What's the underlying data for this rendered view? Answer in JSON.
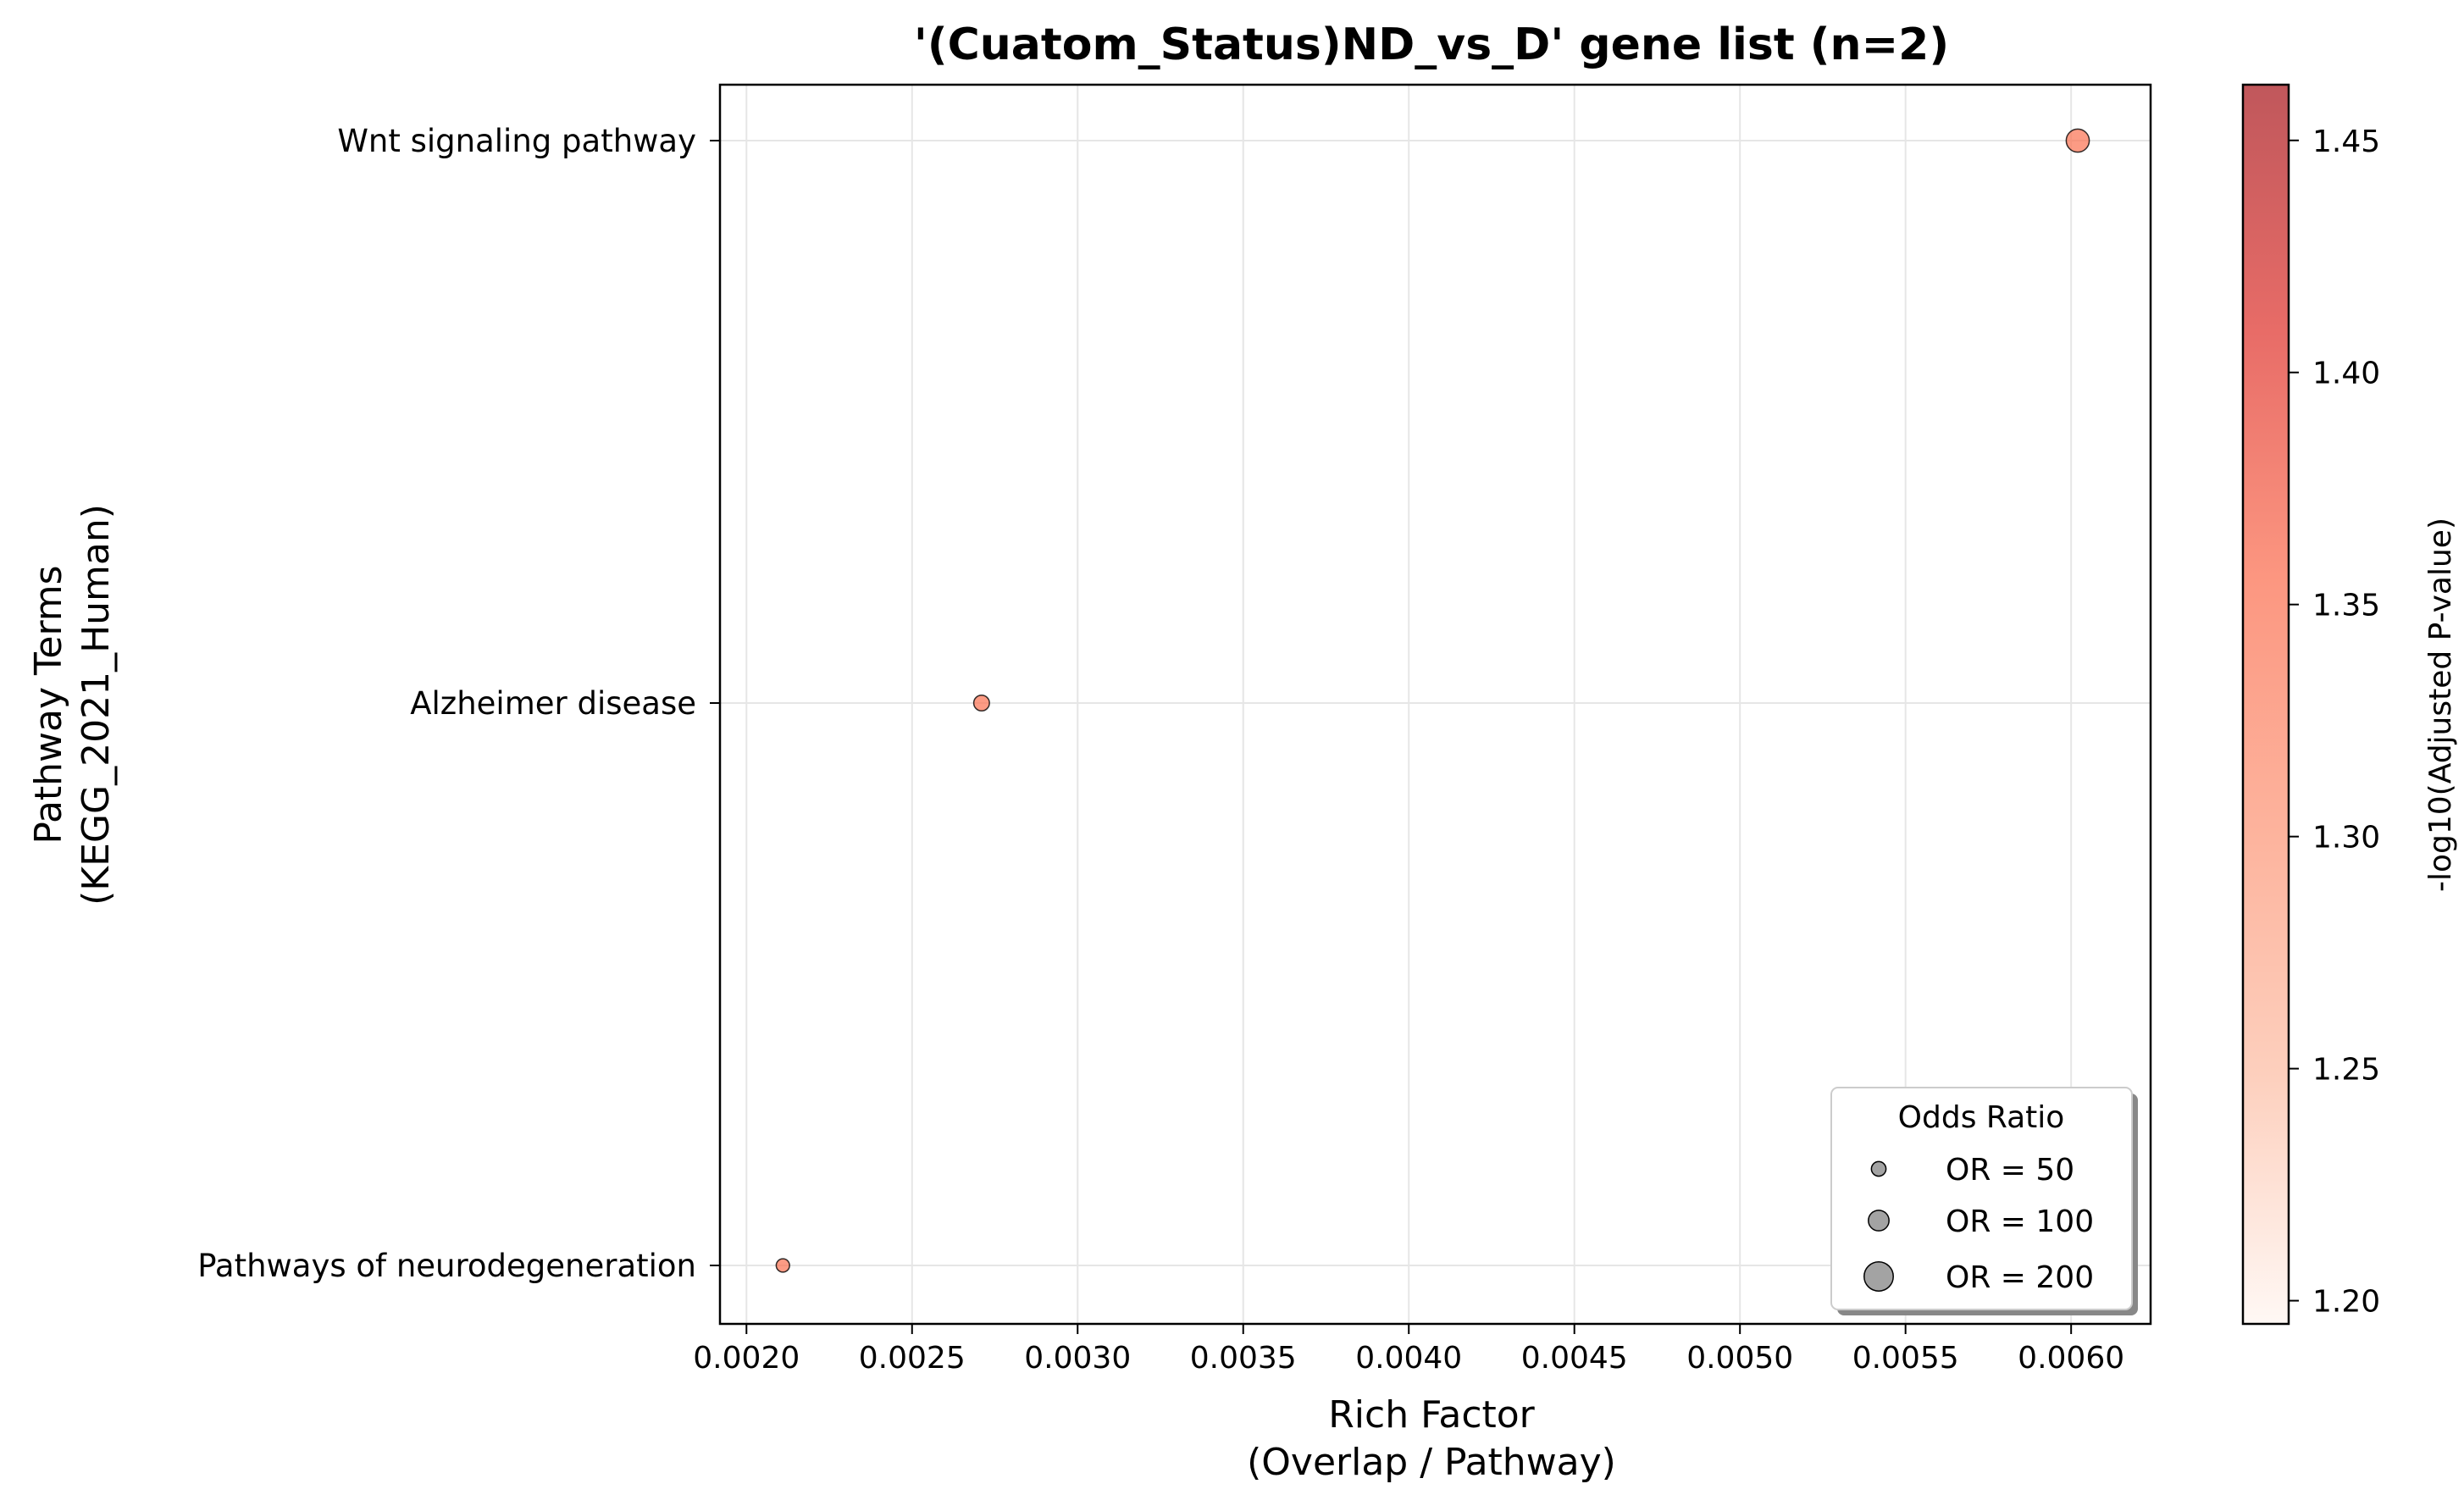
{
  "chart_data": {
    "type": "scatter",
    "title": "'(Cuatom_Status)ND_vs_D' gene list (n=2)",
    "xlabel_line1": "Rich Factor",
    "xlabel_line2": "(Overlap / Pathway)",
    "ylabel_line1": "Pathway Terms",
    "ylabel_line2": "(KEGG_2021_Human)",
    "xlim": [
      0.00192,
      0.00624
    ],
    "xticks": [
      "0.0020",
      "0.0025",
      "0.0030",
      "0.0035",
      "0.0040",
      "0.0045",
      "0.0050",
      "0.0055",
      "0.0060"
    ],
    "xtick_values": [
      0.002,
      0.0025,
      0.003,
      0.0035,
      0.004,
      0.0045,
      0.005,
      0.0055,
      0.006
    ],
    "categories": [
      "Wnt signaling pathway",
      "Alzheimer disease",
      "Pathways of neurodegeneration"
    ],
    "points": [
      {
        "term": "Wnt signaling pathway",
        "x": 0.00602,
        "odds_ratio": 125,
        "neglog10_padj": 1.34
      },
      {
        "term": "Alzheimer disease",
        "x": 0.00271,
        "odds_ratio": 58,
        "neglog10_padj": 1.34
      },
      {
        "term": "Pathways of neurodegeneration",
        "x": 0.00211,
        "odds_ratio": 42,
        "neglog10_padj": 1.34
      }
    ],
    "grid": true,
    "colorbar": {
      "label": "-log10(Adjusted P-value)",
      "range": [
        1.195,
        1.462
      ],
      "ticks": [
        "1.20",
        "1.25",
        "1.30",
        "1.35",
        "1.40",
        "1.45"
      ],
      "tick_values": [
        1.2,
        1.25,
        1.3,
        1.35,
        1.4,
        1.45
      ],
      "colors": [
        "#fff5f0",
        "#fcbba1",
        "#fc9272",
        "#fb6a4a",
        "#de2d26",
        "#a50f15"
      ]
    },
    "legend": {
      "title": "Odds Ratio",
      "placement": "bottom-right",
      "entries": [
        {
          "label": "OR = 50",
          "odds_ratio": 50
        },
        {
          "label": "OR = 100",
          "odds_ratio": 100
        },
        {
          "label": "OR = 200",
          "odds_ratio": 200
        }
      ]
    }
  }
}
